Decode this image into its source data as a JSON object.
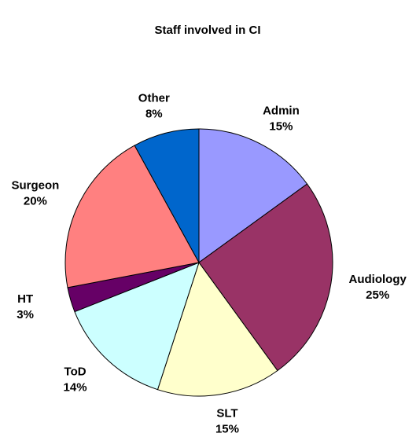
{
  "chart_data": {
    "type": "pie",
    "title": "Staff involved in CI",
    "categories": [
      "Admin",
      "Audiology",
      "SLT",
      "ToD",
      "HT",
      "Surgeon",
      "Other"
    ],
    "values": [
      15,
      25,
      15,
      14,
      3,
      20,
      8
    ],
    "value_labels": [
      "15%",
      "25%",
      "15%",
      "14%",
      "3%",
      "20%",
      "8%"
    ],
    "colors": [
      "#9999ff",
      "#993366",
      "#ffffcc",
      "#ccffff",
      "#660066",
      "#ff8080",
      "#0066cc"
    ]
  }
}
